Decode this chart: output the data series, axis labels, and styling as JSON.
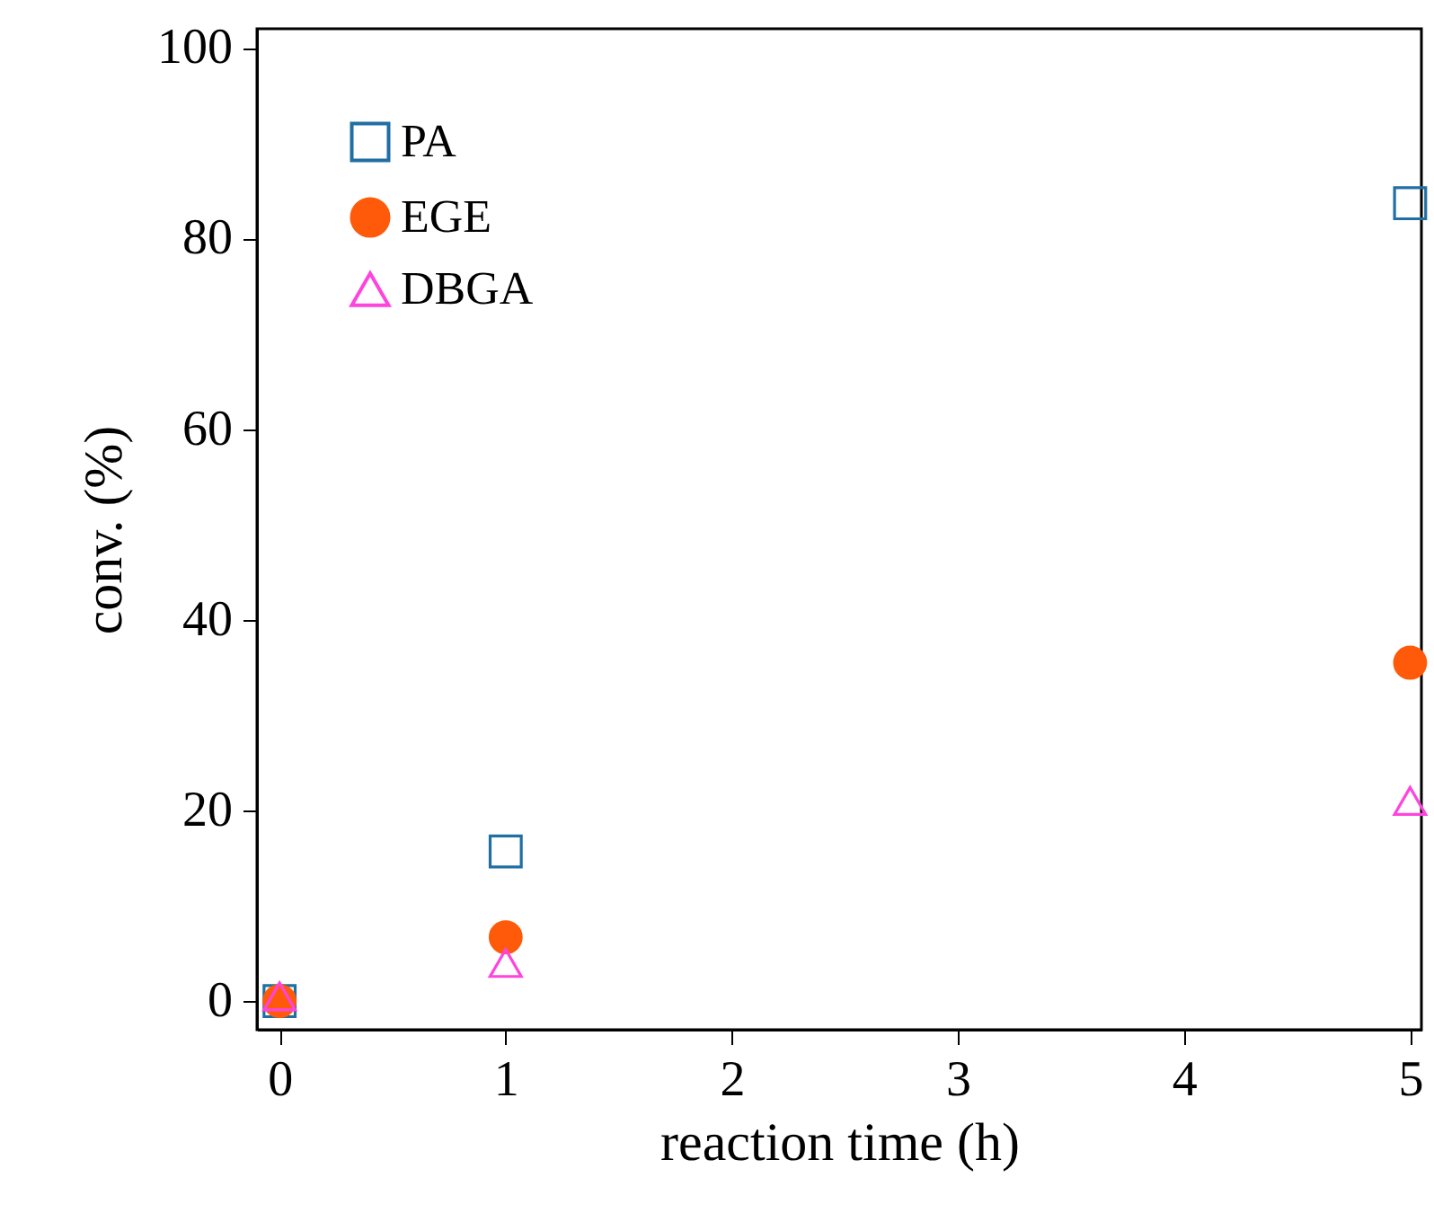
{
  "chart_data": {
    "type": "scatter",
    "xlabel": "reaction time (h)",
    "ylabel": "conv. (%)",
    "x": [
      0,
      1,
      5
    ],
    "series": [
      {
        "name": "PA",
        "color": "#1f6fa3",
        "marker": "square",
        "values": [
          0,
          15.7,
          83.7
        ]
      },
      {
        "name": "EGE",
        "color": "#ff5a0a",
        "marker": "circle",
        "values": [
          0,
          6.7,
          35.5
        ]
      },
      {
        "name": "DBGA",
        "color": "#ff44dd",
        "marker": "triangle",
        "values": [
          0.5,
          4,
          21
        ]
      }
    ],
    "xlim": [
      -0.1,
      5.05
    ],
    "xticks": [
      0,
      1,
      2,
      3,
      4,
      5
    ],
    "ylim": [
      -3,
      102
    ],
    "yticks": [
      0,
      20,
      40,
      60,
      80,
      100
    ],
    "legend": "top left",
    "grid": false
  }
}
